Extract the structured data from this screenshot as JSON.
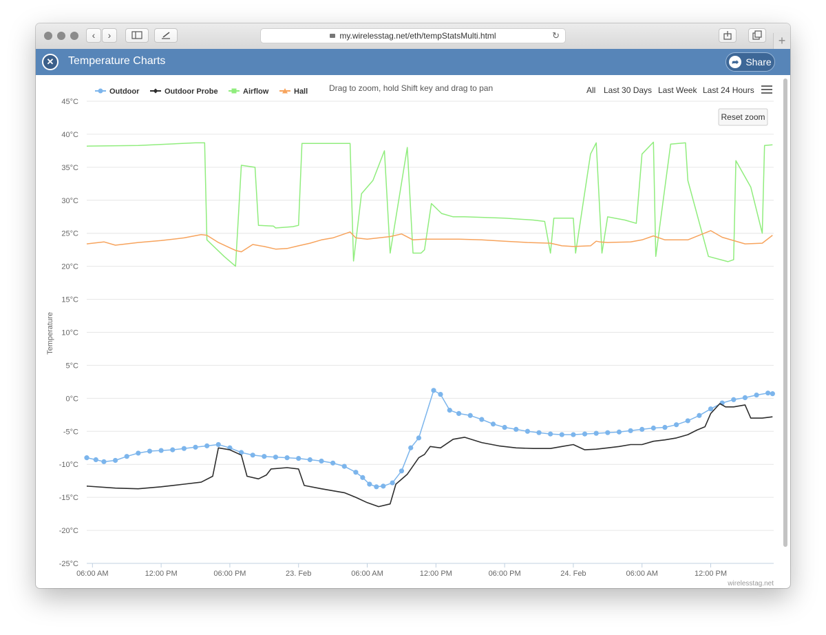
{
  "browser": {
    "url": "my.wirelesstag.net/eth/tempStatsMulti.html"
  },
  "app": {
    "title": "Temperature Charts",
    "share_label": "Share"
  },
  "toolbar": {
    "hint": "Drag to zoom, hold Shift key and drag to pan",
    "ranges": [
      "All",
      "Last 30 Days",
      "Last Week",
      "Last 24 Hours"
    ],
    "reset_zoom": "Reset zoom",
    "credit": "wirelesstag.net"
  },
  "colors": {
    "outdoor": "#7cb5ec",
    "outdoor_probe": "#2d2d2d",
    "airflow": "#90ed7d",
    "hall": "#f7a35c",
    "appbar": "#5785b8"
  },
  "chart_data": {
    "type": "line",
    "ylabel": "Temperature",
    "ylim": [
      -25,
      45
    ],
    "y_ticks": [
      "45°C",
      "40°C",
      "35°C",
      "30°C",
      "25°C",
      "20°C",
      "15°C",
      "10°C",
      "5°C",
      "0°C",
      "-5°C",
      "-10°C",
      "-15°C",
      "-20°C",
      "-25°C"
    ],
    "x_ticks": [
      "06:00 AM",
      "12:00 PM",
      "06:00 PM",
      "23. Feb",
      "06:00 AM",
      "12:00 PM",
      "06:00 PM",
      "24. Feb",
      "06:00 AM",
      "12:00 PM"
    ],
    "x_tick_hours": [
      6,
      12,
      18,
      24,
      30,
      36,
      42,
      48,
      54,
      60
    ],
    "xlim_hours": [
      5.5,
      65.5
    ],
    "grid": true,
    "legend_position": "top-left",
    "series": [
      {
        "name": "Outdoor",
        "key": "outdoor",
        "markers": true,
        "points": [
          [
            5.5,
            -9
          ],
          [
            6.3,
            -9.3
          ],
          [
            7,
            -9.6
          ],
          [
            8,
            -9.4
          ],
          [
            9,
            -8.8
          ],
          [
            10,
            -8.3
          ],
          [
            11,
            -8
          ],
          [
            12,
            -7.9
          ],
          [
            13,
            -7.8
          ],
          [
            14,
            -7.6
          ],
          [
            15,
            -7.4
          ],
          [
            16,
            -7.2
          ],
          [
            17,
            -7
          ],
          [
            18,
            -7.5
          ],
          [
            19,
            -8.2
          ],
          [
            20,
            -8.6
          ],
          [
            21,
            -8.8
          ],
          [
            22,
            -8.9
          ],
          [
            23,
            -9
          ],
          [
            24,
            -9.1
          ],
          [
            25,
            -9.3
          ],
          [
            26,
            -9.5
          ],
          [
            27,
            -9.8
          ],
          [
            28,
            -10.3
          ],
          [
            29,
            -11.2
          ],
          [
            29.6,
            -12
          ],
          [
            30.2,
            -13
          ],
          [
            30.8,
            -13.4
          ],
          [
            31.4,
            -13.3
          ],
          [
            32.2,
            -12.8
          ],
          [
            33,
            -11
          ],
          [
            33.8,
            -7.5
          ],
          [
            34.5,
            -6
          ],
          [
            35.8,
            1.2
          ],
          [
            36.4,
            0.6
          ],
          [
            37.2,
            -1.8
          ],
          [
            38,
            -2.3
          ],
          [
            39,
            -2.6
          ],
          [
            40,
            -3.2
          ],
          [
            41,
            -3.9
          ],
          [
            42,
            -4.4
          ],
          [
            43,
            -4.7
          ],
          [
            44,
            -5
          ],
          [
            45,
            -5.2
          ],
          [
            46,
            -5.4
          ],
          [
            47,
            -5.5
          ],
          [
            48,
            -5.5
          ],
          [
            49,
            -5.4
          ],
          [
            50,
            -5.3
          ],
          [
            51,
            -5.2
          ],
          [
            52,
            -5.1
          ],
          [
            53,
            -4.9
          ],
          [
            54,
            -4.7
          ],
          [
            55,
            -4.5
          ],
          [
            56,
            -4.4
          ],
          [
            57,
            -4
          ],
          [
            58,
            -3.4
          ],
          [
            59,
            -2.6
          ],
          [
            60,
            -1.6
          ],
          [
            61,
            -0.7
          ],
          [
            62,
            -0.2
          ],
          [
            63,
            0.1
          ],
          [
            64,
            0.5
          ],
          [
            65,
            0.8
          ],
          [
            65.4,
            0.7
          ]
        ]
      },
      {
        "name": "Outdoor Probe",
        "key": "outdoor_probe",
        "markers": true,
        "points": [
          [
            5.5,
            -13.3
          ],
          [
            8,
            -13.6
          ],
          [
            10,
            -13.7
          ],
          [
            12,
            -13.4
          ],
          [
            14,
            -13
          ],
          [
            15.5,
            -12.7
          ],
          [
            16.5,
            -11.8
          ],
          [
            17,
            -7.5
          ],
          [
            18,
            -7.8
          ],
          [
            19,
            -8.6
          ],
          [
            19.5,
            -11.8
          ],
          [
            20.5,
            -12.2
          ],
          [
            21.2,
            -11.6
          ],
          [
            21.6,
            -10.7
          ],
          [
            23,
            -10.5
          ],
          [
            24,
            -10.7
          ],
          [
            24.5,
            -13.2
          ],
          [
            26,
            -13.7
          ],
          [
            27,
            -14
          ],
          [
            28,
            -14.3
          ],
          [
            29,
            -15
          ],
          [
            30,
            -15.8
          ],
          [
            31,
            -16.4
          ],
          [
            32,
            -16
          ],
          [
            32.5,
            -13
          ],
          [
            33.5,
            -11.5
          ],
          [
            34.5,
            -9
          ],
          [
            35,
            -8.5
          ],
          [
            35.5,
            -7.3
          ],
          [
            36.4,
            -7.5
          ],
          [
            37.5,
            -6.2
          ],
          [
            38.5,
            -5.9
          ],
          [
            40,
            -6.7
          ],
          [
            41.5,
            -7.2
          ],
          [
            43,
            -7.5
          ],
          [
            44.5,
            -7.6
          ],
          [
            46,
            -7.6
          ],
          [
            47,
            -7.3
          ],
          [
            48,
            -7
          ],
          [
            49,
            -7.8
          ],
          [
            50,
            -7.7
          ],
          [
            51,
            -7.5
          ],
          [
            52,
            -7.3
          ],
          [
            53,
            -7
          ],
          [
            54,
            -7
          ],
          [
            55,
            -6.5
          ],
          [
            56,
            -6.3
          ],
          [
            57,
            -6
          ],
          [
            58,
            -5.5
          ],
          [
            58.8,
            -4.8
          ],
          [
            59.5,
            -4.3
          ],
          [
            60,
            -2.3
          ],
          [
            60.8,
            -0.8
          ],
          [
            61.3,
            -1.3
          ],
          [
            62,
            -1.3
          ],
          [
            63,
            -1
          ],
          [
            63.5,
            -3
          ],
          [
            64.5,
            -3
          ],
          [
            65.4,
            -2.8
          ]
        ]
      },
      {
        "name": "Airflow",
        "key": "airflow",
        "markers": true,
        "points": [
          [
            5.5,
            38.2
          ],
          [
            10,
            38.3
          ],
          [
            15,
            38.7
          ],
          [
            15.8,
            38.7
          ],
          [
            16,
            24
          ],
          [
            17.5,
            21.5
          ],
          [
            18.5,
            20
          ],
          [
            19,
            35.3
          ],
          [
            20.2,
            35
          ],
          [
            20.5,
            26.2
          ],
          [
            21.8,
            26.1
          ],
          [
            22,
            25.8
          ],
          [
            23.5,
            26
          ],
          [
            24,
            26.2
          ],
          [
            24.3,
            38.6
          ],
          [
            28.5,
            38.6
          ],
          [
            28.8,
            20.8
          ],
          [
            29.5,
            31
          ],
          [
            30.5,
            33
          ],
          [
            31.5,
            37.5
          ],
          [
            32,
            22
          ],
          [
            33.5,
            38
          ],
          [
            34,
            22
          ],
          [
            34.7,
            22
          ],
          [
            35,
            22.5
          ],
          [
            35.6,
            29.5
          ],
          [
            36.5,
            28
          ],
          [
            37.5,
            27.5
          ],
          [
            38.5,
            27.5
          ],
          [
            42,
            27.3
          ],
          [
            44.5,
            27
          ],
          [
            45.5,
            26.8
          ],
          [
            46,
            22
          ],
          [
            46.3,
            27.3
          ],
          [
            47.5,
            27.3
          ],
          [
            48,
            27.3
          ],
          [
            48.2,
            22
          ],
          [
            49.5,
            37
          ],
          [
            50,
            38.7
          ],
          [
            50.5,
            22
          ],
          [
            51,
            27.5
          ],
          [
            52.5,
            27
          ],
          [
            53.5,
            26.5
          ],
          [
            54,
            37
          ],
          [
            55,
            38.8
          ],
          [
            55.2,
            21.5
          ],
          [
            56.5,
            38.5
          ],
          [
            57.8,
            38.7
          ],
          [
            58,
            33
          ],
          [
            59.8,
            21.5
          ],
          [
            61.5,
            20.7
          ],
          [
            62,
            21
          ],
          [
            62.2,
            36
          ],
          [
            63.5,
            32
          ],
          [
            64.5,
            25
          ],
          [
            64.7,
            38.3
          ],
          [
            65.4,
            38.4
          ]
        ]
      },
      {
        "name": "Hall",
        "key": "hall",
        "markers": true,
        "points": [
          [
            5.5,
            23.4
          ],
          [
            7,
            23.7
          ],
          [
            8,
            23.2
          ],
          [
            10,
            23.6
          ],
          [
            12,
            23.9
          ],
          [
            14,
            24.3
          ],
          [
            15.5,
            24.8
          ],
          [
            16,
            24.7
          ],
          [
            17,
            23.6
          ],
          [
            18,
            22.8
          ],
          [
            18.5,
            22.4
          ],
          [
            19,
            22.2
          ],
          [
            20,
            23.3
          ],
          [
            21,
            23
          ],
          [
            22,
            22.6
          ],
          [
            23,
            22.7
          ],
          [
            24,
            23.1
          ],
          [
            25,
            23.5
          ],
          [
            26,
            24
          ],
          [
            27,
            24.3
          ],
          [
            28.5,
            25.2
          ],
          [
            29,
            24.3
          ],
          [
            30,
            24.1
          ],
          [
            31,
            24.3
          ],
          [
            32,
            24.5
          ],
          [
            33,
            24.9
          ],
          [
            34,
            24
          ],
          [
            35,
            24.1
          ],
          [
            36,
            24.1
          ],
          [
            38,
            24.1
          ],
          [
            40,
            24
          ],
          [
            42,
            23.8
          ],
          [
            44,
            23.6
          ],
          [
            46,
            23.5
          ],
          [
            47,
            23.1
          ],
          [
            48,
            23
          ],
          [
            49.5,
            23.1
          ],
          [
            50,
            23.8
          ],
          [
            50.3,
            23.7
          ],
          [
            51,
            23.6
          ],
          [
            53,
            23.7
          ],
          [
            54,
            24
          ],
          [
            55,
            24.6
          ],
          [
            56,
            24
          ],
          [
            58,
            24
          ],
          [
            59,
            24.7
          ],
          [
            60,
            25.4
          ],
          [
            61,
            24.4
          ],
          [
            63,
            23.4
          ],
          [
            64.5,
            23.5
          ],
          [
            65.4,
            24.7
          ]
        ]
      }
    ]
  }
}
